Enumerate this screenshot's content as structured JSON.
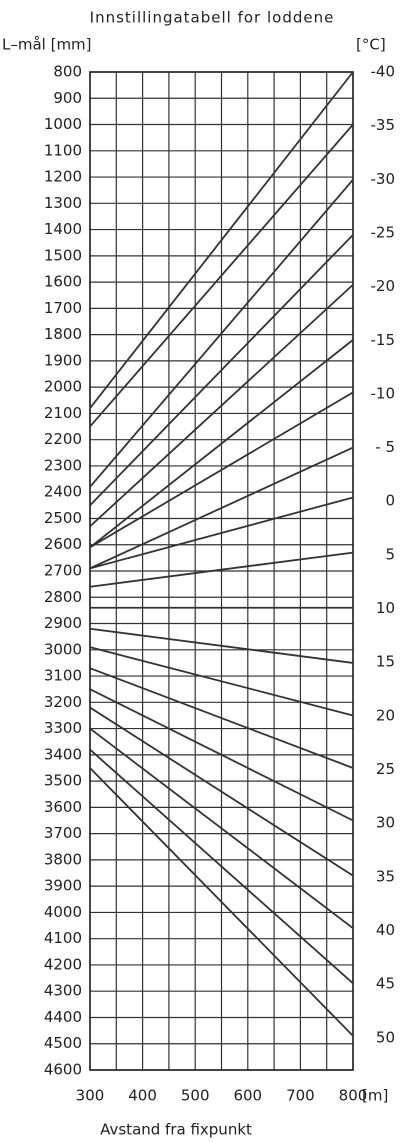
{
  "chart_data": {
    "type": "line",
    "title": "Innstillingatabell for loddene",
    "y_label": "L–mål [mm]",
    "y2_label": "[°C]",
    "x_unit": "[m]",
    "x_label": "Avstand fra fixpunkt",
    "x": [
      300,
      800
    ],
    "xlim": [
      300,
      800
    ],
    "xticks": [
      300,
      400,
      500,
      600,
      700,
      800
    ],
    "x_minor_ticks": [
      350,
      450,
      550,
      650,
      750
    ],
    "ylim": [
      4600,
      800
    ],
    "yticks": [
      800,
      900,
      1000,
      1100,
      1200,
      1300,
      1400,
      1500,
      1600,
      1700,
      1800,
      1900,
      2000,
      2100,
      2200,
      2300,
      2400,
      2500,
      2600,
      2700,
      2800,
      2900,
      3000,
      3100,
      3200,
      3300,
      3400,
      3500,
      3600,
      3700,
      3800,
      3900,
      4000,
      4100,
      4200,
      4300,
      4400,
      4500,
      4600
    ],
    "y2lim": [
      53,
      -40
    ],
    "y2ticks": [
      -40,
      -35,
      -30,
      -25,
      -20,
      -15,
      -10,
      {
        "value": -5,
        "label": "- 5"
      },
      0,
      5,
      10,
      15,
      20,
      25,
      30,
      35,
      40,
      45,
      50
    ],
    "grid": true,
    "series": [
      {
        "color": "#333333",
        "values": [
          2080,
          800
        ]
      },
      {
        "color": "#333333",
        "values": [
          2150,
          1000
        ]
      },
      {
        "color": "#333333",
        "values": [
          2380,
          1210
        ]
      },
      {
        "color": "#333333",
        "values": [
          2450,
          1420
        ]
      },
      {
        "color": "#333333",
        "values": [
          2530,
          1610
        ]
      },
      {
        "color": "#333333",
        "values": [
          2610,
          1820
        ]
      },
      {
        "color": "#333333",
        "values": [
          2610,
          2020
        ]
      },
      {
        "color": "#333333",
        "values": [
          2690,
          2230
        ]
      },
      {
        "color": "#333333",
        "values": [
          2690,
          2420
        ]
      },
      {
        "color": "#333333",
        "values": [
          2760,
          2630
        ]
      },
      {
        "color": "#333333",
        "values": [
          2840,
          2840
        ]
      },
      {
        "color": "#333333",
        "values": [
          2920,
          3050
        ]
      },
      {
        "color": "#333333",
        "values": [
          2990,
          3250
        ]
      },
      {
        "color": "#333333",
        "values": [
          3070,
          3450
        ]
      },
      {
        "color": "#333333",
        "values": [
          3150,
          3650
        ]
      },
      {
        "color": "#333333",
        "values": [
          3220,
          3860
        ]
      },
      {
        "color": "#333333",
        "values": [
          3300,
          4060
        ]
      },
      {
        "color": "#333333",
        "values": [
          3380,
          4270
        ]
      },
      {
        "color": "#333333",
        "values": [
          3450,
          4470
        ]
      }
    ]
  }
}
